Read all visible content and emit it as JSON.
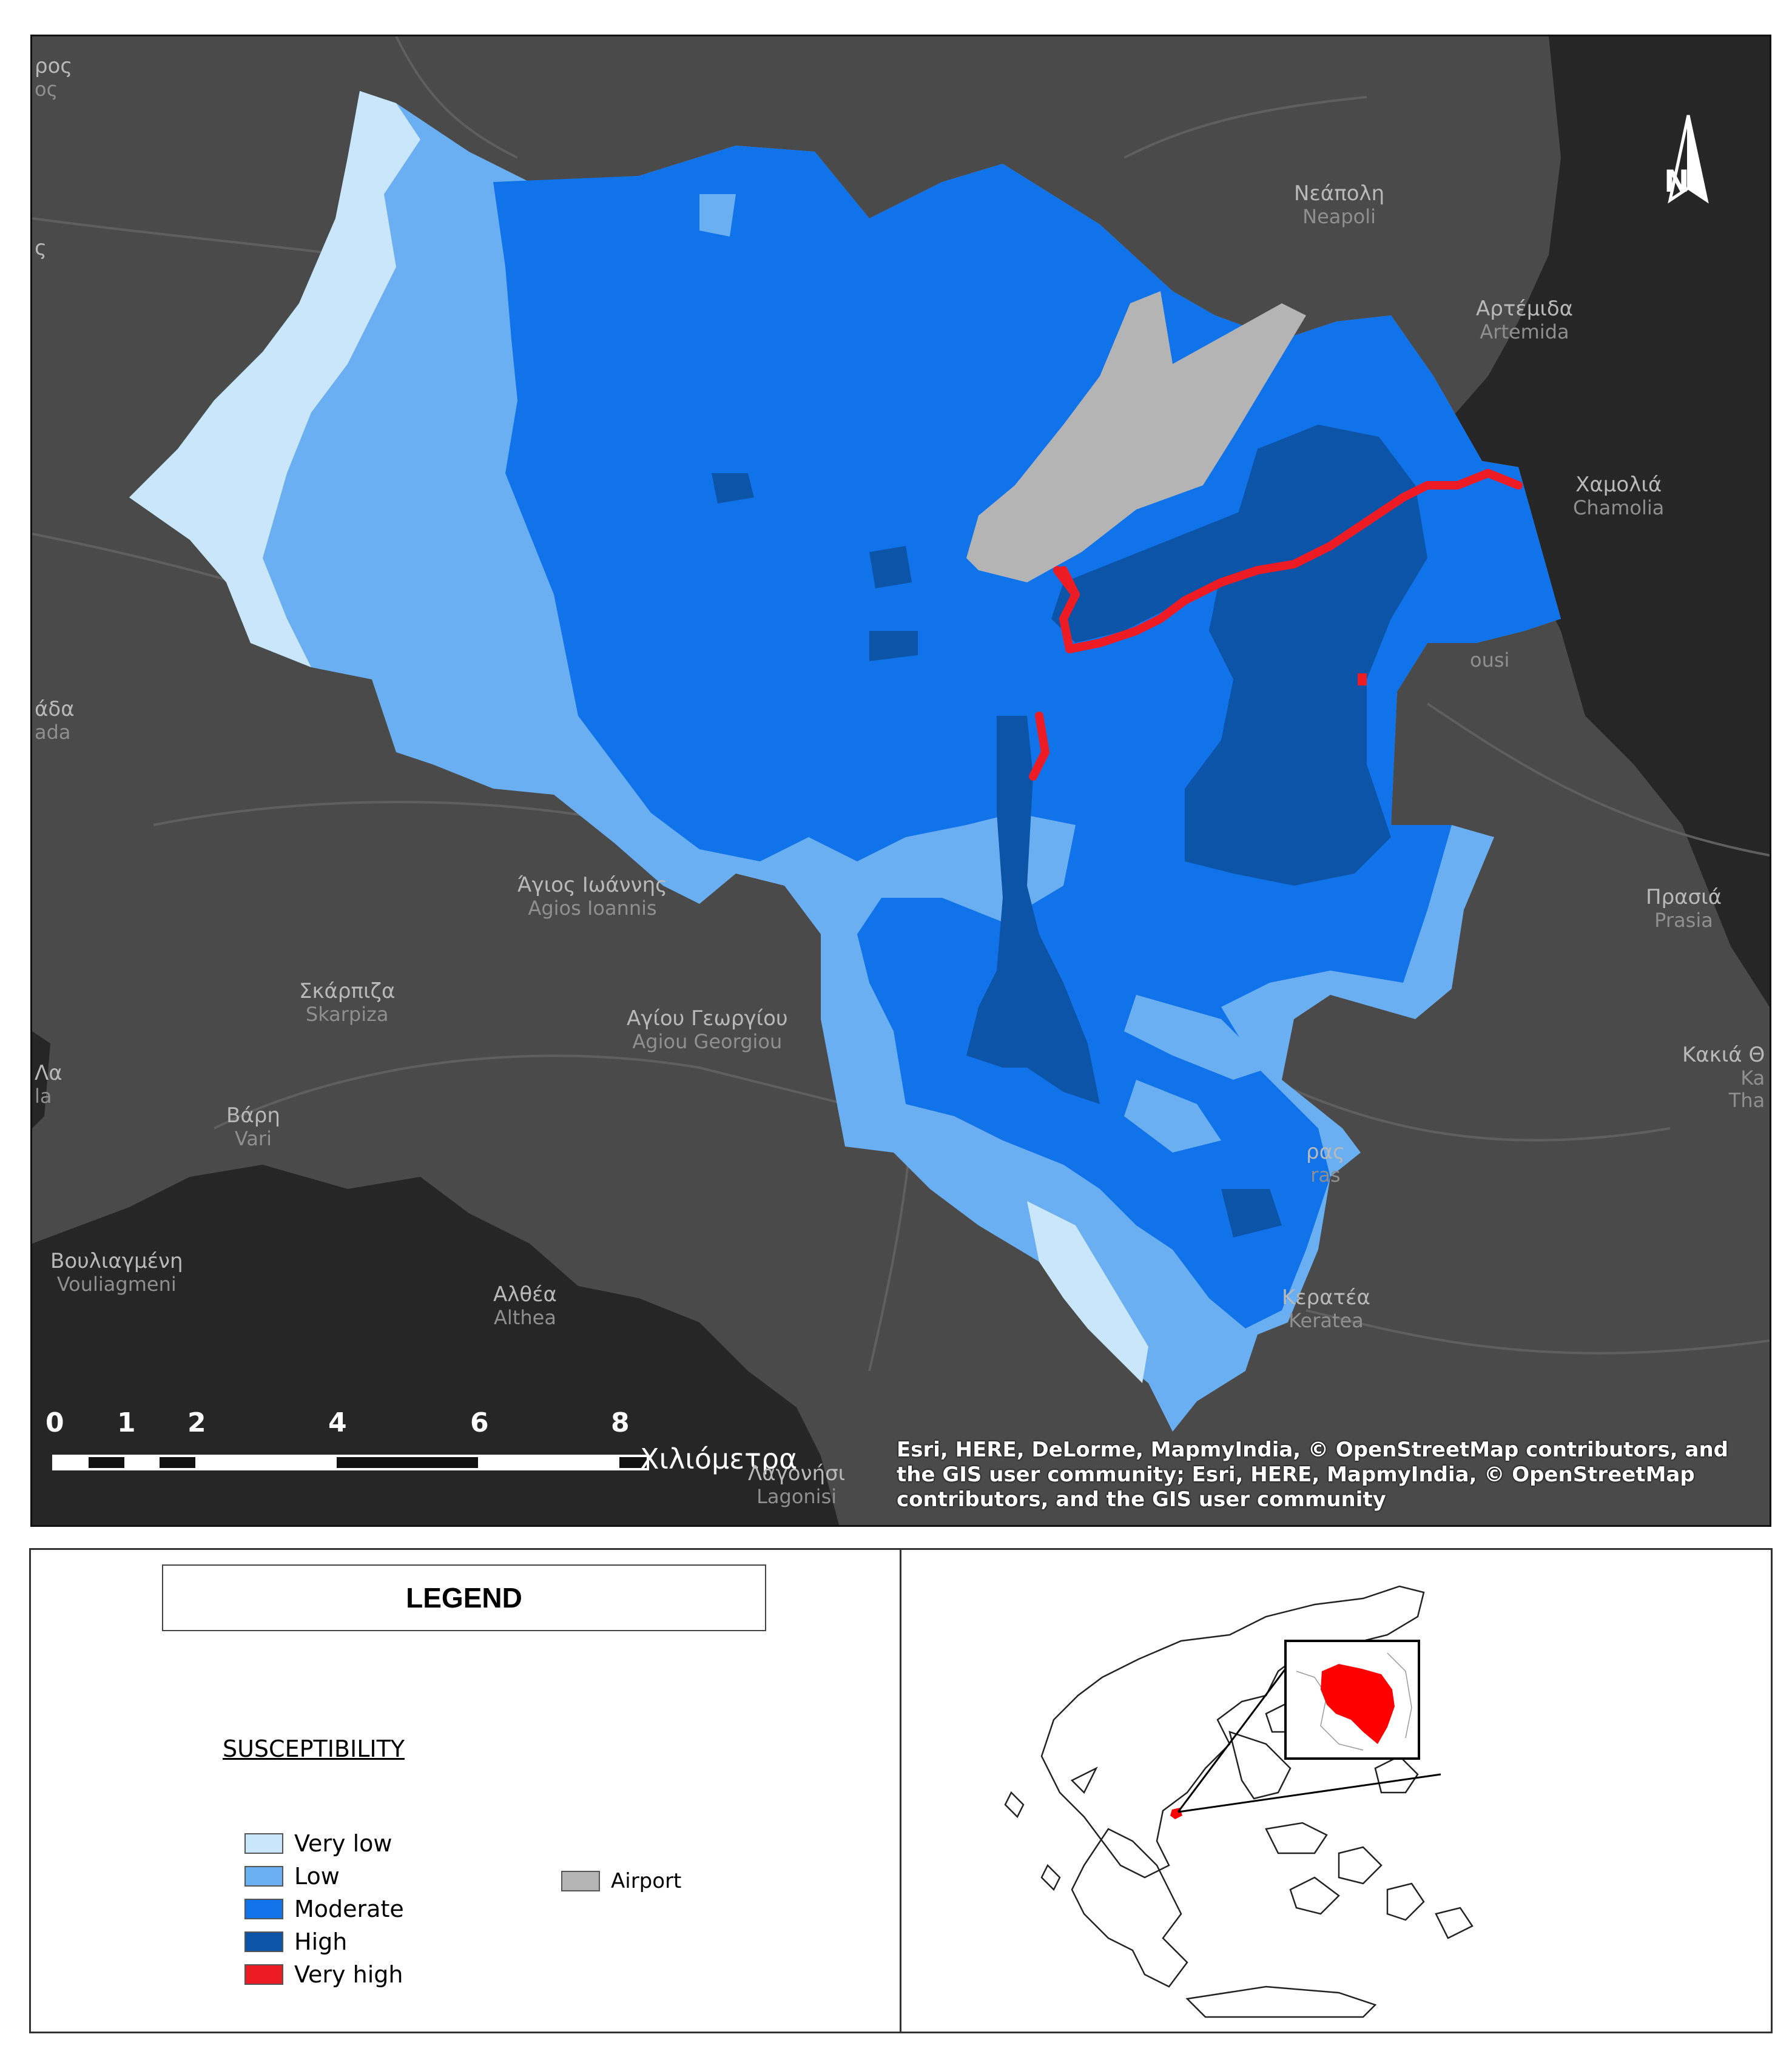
{
  "map": {
    "north_arrow_label": "N",
    "scale_bar": {
      "ticks": [
        "0",
        "1",
        "2",
        "4",
        "6",
        "8"
      ],
      "unit": "Χιλιόμετρα"
    },
    "attribution": "Esri, HERE, DeLorme, MapmyIndia, © OpenStreetMap contributors, and the GIS user community; Esri, HERE, MapmyIndia, © OpenStreetMap contributors, and the GIS user community",
    "places": [
      {
        "id": "neapoli",
        "greek": "Νεάπολη",
        "latin": "Neapoli"
      },
      {
        "id": "artemida",
        "greek": "Αρτέμιδα",
        "latin": "Artemida"
      },
      {
        "id": "chamolia",
        "greek": "Χαμολιά",
        "latin": "Chamolia"
      },
      {
        "id": "agios-ioannis",
        "greek": "Άγιος Ιωάννης",
        "latin": "Agios Ioannis"
      },
      {
        "id": "skarpiza",
        "greek": "Σκάρπιζα",
        "latin": "Skarpiza"
      },
      {
        "id": "agiou-georgiou",
        "greek": "Αγίου Γεωργίου",
        "latin": "Agiou Georgiou"
      },
      {
        "id": "vari",
        "greek": "Βάρη",
        "latin": "Vari"
      },
      {
        "id": "vouliagmeni",
        "greek": "Βουλιαγμένη",
        "latin": "Vouliagmeni"
      },
      {
        "id": "althea",
        "greek": "Αλθέα",
        "latin": "Althea"
      },
      {
        "id": "prasia",
        "greek": "Πρασιά",
        "latin": "Prasia"
      },
      {
        "id": "keratea",
        "greek": "Κερατέα",
        "latin": "Keratea"
      },
      {
        "id": "lagonisi",
        "greek": "Λαγονήσι",
        "latin": "Lagonisi"
      }
    ],
    "edge_labels": [
      "ρος",
      "ος",
      "άδα",
      "ada",
      "Λα",
      "la",
      "Κακιά Θ",
      "Ka",
      "Tha",
      "ρας",
      "ras",
      "ousi",
      "ς"
    ]
  },
  "legend": {
    "title": "LEGEND",
    "heading": "SUSCEPTIBILITY",
    "classes": [
      {
        "label": "Very low",
        "color": "#c9e6fb"
      },
      {
        "label": "Low",
        "color": "#6aaff2"
      },
      {
        "label": "Moderate",
        "color": "#1173ea"
      },
      {
        "label": "High",
        "color": "#0c54a8"
      },
      {
        "label": "Very high",
        "color": "#ed1c24"
      }
    ],
    "airport": {
      "label": "Airport",
      "color": "#b4b4b4"
    }
  },
  "colors": {
    "basemap": "#4a4a4a",
    "sea": "#262626",
    "roads": "#5e5e5e",
    "inset_highlight": "#ff0000"
  }
}
